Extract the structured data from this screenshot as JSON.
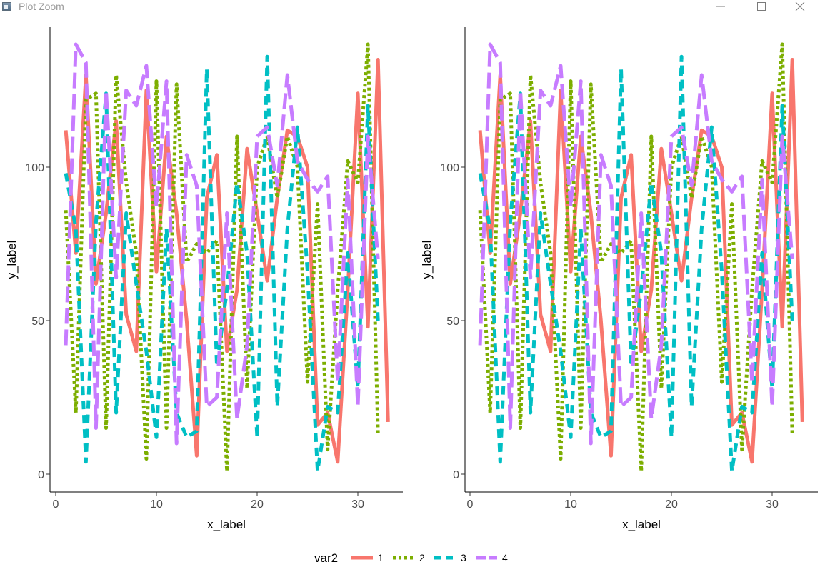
{
  "window": {
    "title": "Plot Zoom",
    "minimize_icon": "minimize-icon",
    "maximize_icon": "maximize-icon",
    "close_icon": "close-icon"
  },
  "legend": {
    "title": "var2",
    "placement": "bottom",
    "items": [
      {
        "label": "1",
        "color": "#F8766D",
        "linetype": "solid"
      },
      {
        "label": "2",
        "color": "#7CAE00",
        "linetype": "dotted"
      },
      {
        "label": "3",
        "color": "#00BFC4",
        "linetype": "dashed"
      },
      {
        "label": "4",
        "color": "#C77CFF",
        "linetype": "longdash"
      }
    ]
  },
  "chart_data": [
    {
      "type": "line",
      "xlabel": "x_label",
      "ylabel": "y_label",
      "xlim": [
        0,
        34
      ],
      "ylim": [
        -5,
        147
      ],
      "xticks": [
        0,
        10,
        20,
        30
      ],
      "yticks": [
        0,
        50,
        100
      ],
      "grid": false,
      "x": [
        1,
        2,
        3,
        4,
        5,
        6,
        7,
        8,
        9,
        10,
        11,
        12,
        13,
        14,
        15,
        16,
        17,
        18,
        19,
        20,
        21,
        22,
        23,
        24,
        25,
        26,
        27,
        28,
        29,
        30,
        31,
        32,
        33
      ],
      "series": [
        {
          "name": "1",
          "values": [
            112,
            72,
            130,
            62,
            85,
            115,
            52,
            40,
            125,
            66,
            110,
            85,
            50,
            6,
            90,
            104,
            40,
            60,
            106,
            85,
            63,
            90,
            112,
            110,
            100,
            16,
            20,
            4,
            60,
            124,
            48,
            135,
            17
          ]
        },
        {
          "name": "2",
          "values": [
            86,
            20,
            122,
            124,
            15,
            130,
            95,
            72,
            5,
            128,
            15,
            127,
            69,
            75,
            72,
            76,
            1,
            110,
            28,
            100,
            110,
            90,
            110,
            100,
            30,
            88,
            8,
            60,
            102,
            95,
            140,
            13,
            null
          ]
        },
        {
          "name": "3",
          "values": [
            98,
            80,
            4,
            82,
            124,
            20,
            85,
            62,
            40,
            12,
            80,
            20,
            12,
            14,
            132,
            35,
            60,
            95,
            72,
            12,
            136,
            22,
            80,
            113,
            66,
            1,
            22,
            20,
            72,
            28,
            120,
            50,
            null
          ]
        },
        {
          "name": "4",
          "values": [
            42,
            140,
            134,
            15,
            125,
            64,
            125,
            120,
            133,
            87,
            128,
            10,
            104,
            94,
            22,
            25,
            85,
            18,
            42,
            110,
            113,
            94,
            130,
            102,
            96,
            92,
            97,
            30,
            96,
            22,
            110,
            70,
            null
          ]
        }
      ]
    },
    {
      "type": "line",
      "xlabel": "x_label",
      "ylabel": "y_label",
      "xlim": [
        0,
        34
      ],
      "ylim": [
        -5,
        147
      ],
      "xticks": [
        0,
        10,
        20,
        30
      ],
      "yticks": [
        0,
        50,
        100
      ],
      "grid": false,
      "x": [
        1,
        2,
        3,
        4,
        5,
        6,
        7,
        8,
        9,
        10,
        11,
        12,
        13,
        14,
        15,
        16,
        17,
        18,
        19,
        20,
        21,
        22,
        23,
        24,
        25,
        26,
        27,
        28,
        29,
        30,
        31,
        32,
        33
      ],
      "series": [
        {
          "name": "1",
          "values": [
            112,
            72,
            130,
            62,
            85,
            115,
            52,
            40,
            125,
            66,
            110,
            85,
            50,
            6,
            90,
            104,
            40,
            60,
            106,
            85,
            63,
            90,
            112,
            110,
            100,
            16,
            20,
            4,
            60,
            124,
            48,
            135,
            17
          ]
        },
        {
          "name": "2",
          "values": [
            86,
            20,
            122,
            124,
            15,
            130,
            95,
            72,
            5,
            128,
            15,
            127,
            69,
            75,
            72,
            76,
            1,
            110,
            28,
            100,
            110,
            90,
            110,
            100,
            30,
            88,
            8,
            60,
            102,
            95,
            140,
            13,
            null
          ]
        },
        {
          "name": "3",
          "values": [
            98,
            80,
            4,
            82,
            124,
            20,
            85,
            62,
            40,
            12,
            80,
            20,
            12,
            14,
            132,
            35,
            60,
            95,
            72,
            12,
            136,
            22,
            80,
            113,
            66,
            1,
            22,
            20,
            72,
            28,
            120,
            50,
            null
          ]
        },
        {
          "name": "4",
          "values": [
            42,
            140,
            134,
            15,
            125,
            64,
            125,
            120,
            133,
            87,
            128,
            10,
            104,
            94,
            22,
            25,
            85,
            18,
            42,
            110,
            113,
            94,
            130,
            102,
            96,
            92,
            97,
            30,
            96,
            22,
            110,
            70,
            null
          ]
        }
      ]
    }
  ]
}
